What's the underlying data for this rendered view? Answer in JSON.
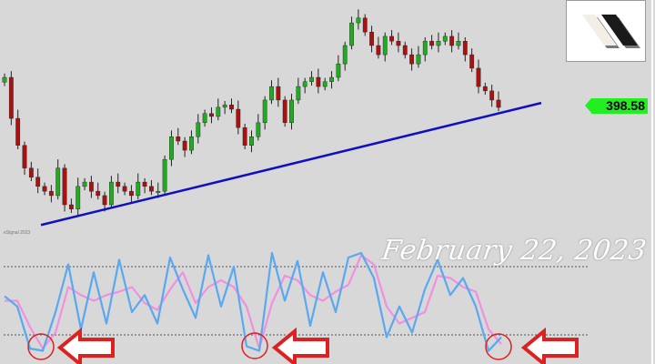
{
  "price_chart": {
    "type": "candlestick",
    "closes": [
      404.8,
      396.3,
      390.7,
      386.0,
      384.1,
      382.2,
      381.2,
      380.3,
      386.0,
      378.4,
      377.5,
      382.2,
      383.1,
      381.2,
      380.3,
      378.4,
      383.1,
      382.2,
      381.2,
      380.3,
      383.1,
      382.2,
      381.2,
      381.2,
      387.8,
      392.5,
      391.6,
      389.7,
      392.5,
      395.4,
      397.3,
      396.7,
      398.6,
      399.1,
      398.2,
      394.4,
      390.7,
      392.5,
      395.4,
      400.1,
      402.9,
      400.1,
      395.4,
      400.1,
      402.9,
      403.9,
      404.8,
      402.9,
      403.9,
      404.8,
      407.6,
      411.4,
      416.1,
      417.1,
      414.2,
      411.4,
      409.5,
      413.3,
      412.3,
      411.4,
      409.5,
      407.6,
      409.5,
      412.3,
      411.4,
      412.3,
      413.3,
      411.4,
      412.3,
      409.5,
      406.7,
      402.9,
      402.0,
      400.1,
      398.58
    ],
    "last_price": "398.58",
    "up_color": "#22aa22",
    "down_color": "#aa1111",
    "trendline_color": "#1010c0",
    "trendline": {
      "from": 374.2,
      "to": 399.5
    }
  },
  "chart_data": {
    "type": "line",
    "series": [
      {
        "values": [
          54,
          45,
          8,
          6,
          40,
          82,
          25,
          75,
          30,
          86,
          40,
          55,
          30,
          88,
          60,
          35,
          90,
          45,
          80,
          10,
          6,
          92,
          50,
          85,
          28,
          75,
          40,
          88,
          92,
          70,
          18,
          45,
          22,
          60,
          86,
          55,
          70,
          45,
          6,
          18
        ],
        "color": "#5aa8f0"
      },
      {
        "values": [
          50,
          50,
          27,
          8,
          22,
          62,
          55,
          50,
          55,
          58,
          62,
          48,
          42,
          60,
          75,
          48,
          62,
          68,
          62,
          45,
          8,
          48,
          72,
          68,
          55,
          50,
          58,
          64,
          90,
          82,
          45,
          30,
          35,
          40,
          72,
          70,
          62,
          58,
          25,
          12
        ],
        "color": "#f090e0"
      }
    ],
    "ylim": [
      0,
      100
    ],
    "reference_lines": [
      80,
      20
    ]
  },
  "watermark": "eSignal 2023",
  "annotation": {
    "date": "February 22, 2023",
    "marker_color": "#dd2020"
  },
  "logo_label": "logo"
}
